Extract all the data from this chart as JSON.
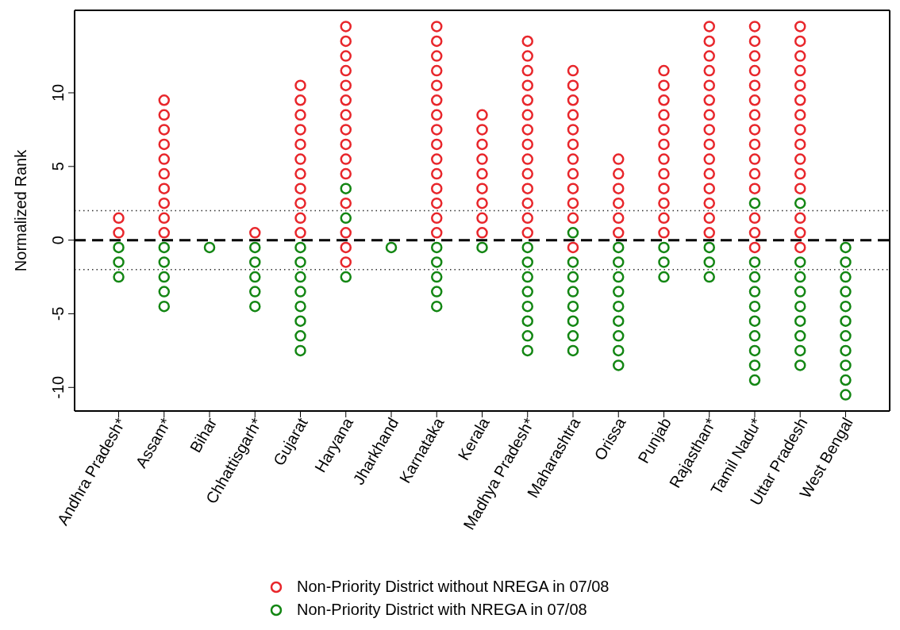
{
  "chart_data": {
    "type": "scatter",
    "ylabel": "Normalized Rank",
    "categories": [
      "Andhra Pradesh*",
      "Assam*",
      "Bihar",
      "Chhattisgarh*",
      "Gujarat",
      "Haryana",
      "Jharkhand",
      "Karnataka",
      "Kerala",
      "Madhya Pradesh*",
      "Maharashtra",
      "Orissa",
      "Punjab",
      "Rajasthan*",
      "Tamil Nadu*",
      "Uttar Pradesh",
      "West Bengal"
    ],
    "ylim": [
      -11.6,
      15.6
    ],
    "yticks": [
      -10,
      -5,
      0,
      5,
      10
    ],
    "grid": false,
    "marker": "circle",
    "legend": "bottom",
    "ref_lines": [
      {
        "axis": "y",
        "value": 0,
        "color": "#000000",
        "line_style": "dashed"
      },
      {
        "axis": "y",
        "value": 2,
        "color": "#333333",
        "line_style": "dotted"
      },
      {
        "axis": "y",
        "value": -2,
        "color": "#333333",
        "line_style": "dotted"
      }
    ],
    "series": [
      {
        "name": "Non-Priority District without NREGA in 07/08",
        "color": "#e8262b",
        "x": [
          "Andhra Pradesh*",
          "Andhra Pradesh*",
          "Assam*",
          "Assam*",
          "Assam*",
          "Assam*",
          "Assam*",
          "Assam*",
          "Assam*",
          "Assam*",
          "Assam*",
          "Assam*",
          "Chhattisgarh*",
          "Gujarat",
          "Gujarat",
          "Gujarat",
          "Gujarat",
          "Gujarat",
          "Gujarat",
          "Gujarat",
          "Gujarat",
          "Gujarat",
          "Gujarat",
          "Gujarat",
          "Haryana",
          "Haryana",
          "Haryana",
          "Haryana",
          "Haryana",
          "Haryana",
          "Haryana",
          "Haryana",
          "Haryana",
          "Haryana",
          "Haryana",
          "Haryana",
          "Haryana",
          "Haryana",
          "Haryana",
          "Karnataka",
          "Karnataka",
          "Karnataka",
          "Karnataka",
          "Karnataka",
          "Karnataka",
          "Karnataka",
          "Karnataka",
          "Karnataka",
          "Karnataka",
          "Karnataka",
          "Karnataka",
          "Karnataka",
          "Karnataka",
          "Karnataka",
          "Kerala",
          "Kerala",
          "Kerala",
          "Kerala",
          "Kerala",
          "Kerala",
          "Kerala",
          "Kerala",
          "Kerala",
          "Madhya Pradesh*",
          "Madhya Pradesh*",
          "Madhya Pradesh*",
          "Madhya Pradesh*",
          "Madhya Pradesh*",
          "Madhya Pradesh*",
          "Madhya Pradesh*",
          "Madhya Pradesh*",
          "Madhya Pradesh*",
          "Madhya Pradesh*",
          "Madhya Pradesh*",
          "Madhya Pradesh*",
          "Madhya Pradesh*",
          "Madhya Pradesh*",
          "Maharashtra",
          "Maharashtra",
          "Maharashtra",
          "Maharashtra",
          "Maharashtra",
          "Maharashtra",
          "Maharashtra",
          "Maharashtra",
          "Maharashtra",
          "Maharashtra",
          "Maharashtra",
          "Maharashtra",
          "Orissa",
          "Orissa",
          "Orissa",
          "Orissa",
          "Orissa",
          "Orissa",
          "Punjab",
          "Punjab",
          "Punjab",
          "Punjab",
          "Punjab",
          "Punjab",
          "Punjab",
          "Punjab",
          "Punjab",
          "Punjab",
          "Punjab",
          "Punjab",
          "Rajasthan*",
          "Rajasthan*",
          "Rajasthan*",
          "Rajasthan*",
          "Rajasthan*",
          "Rajasthan*",
          "Rajasthan*",
          "Rajasthan*",
          "Rajasthan*",
          "Rajasthan*",
          "Rajasthan*",
          "Rajasthan*",
          "Rajasthan*",
          "Rajasthan*",
          "Rajasthan*",
          "Tamil Nadu*",
          "Tamil Nadu*",
          "Tamil Nadu*",
          "Tamil Nadu*",
          "Tamil Nadu*",
          "Tamil Nadu*",
          "Tamil Nadu*",
          "Tamil Nadu*",
          "Tamil Nadu*",
          "Tamil Nadu*",
          "Tamil Nadu*",
          "Tamil Nadu*",
          "Tamil Nadu*",
          "Tamil Nadu*",
          "Tamil Nadu*",
          "Uttar Pradesh",
          "Uttar Pradesh",
          "Uttar Pradesh",
          "Uttar Pradesh",
          "Uttar Pradesh",
          "Uttar Pradesh",
          "Uttar Pradesh",
          "Uttar Pradesh",
          "Uttar Pradesh",
          "Uttar Pradesh",
          "Uttar Pradesh",
          "Uttar Pradesh",
          "Uttar Pradesh",
          "Uttar Pradesh",
          "Uttar Pradesh"
        ],
        "values": [
          0.5,
          1.5,
          0.5,
          1.5,
          2.5,
          3.5,
          4.5,
          5.5,
          6.5,
          7.5,
          8.5,
          9.5,
          0.5,
          0.5,
          1.5,
          2.5,
          3.5,
          4.5,
          5.5,
          6.5,
          7.5,
          8.5,
          9.5,
          10.5,
          -1.5,
          -0.5,
          0.5,
          2.5,
          4.5,
          5.5,
          6.5,
          7.5,
          8.5,
          9.5,
          10.5,
          11.5,
          12.5,
          13.5,
          14.5,
          0.5,
          1.5,
          2.5,
          3.5,
          4.5,
          5.5,
          6.5,
          7.5,
          8.5,
          9.5,
          10.5,
          11.5,
          12.5,
          13.5,
          14.5,
          0.5,
          1.5,
          2.5,
          3.5,
          4.5,
          5.5,
          6.5,
          7.5,
          8.5,
          0.5,
          1.5,
          2.5,
          3.5,
          4.5,
          5.5,
          6.5,
          7.5,
          8.5,
          9.5,
          10.5,
          11.5,
          12.5,
          13.5,
          -0.5,
          1.5,
          2.5,
          3.5,
          4.5,
          5.5,
          6.5,
          7.5,
          8.5,
          9.5,
          10.5,
          11.5,
          0.5,
          1.5,
          2.5,
          3.5,
          4.5,
          5.5,
          0.5,
          1.5,
          2.5,
          3.5,
          4.5,
          5.5,
          6.5,
          7.5,
          8.5,
          9.5,
          10.5,
          11.5,
          0.5,
          1.5,
          2.5,
          3.5,
          4.5,
          5.5,
          6.5,
          7.5,
          8.5,
          9.5,
          10.5,
          11.5,
          12.5,
          13.5,
          14.5,
          -0.5,
          0.5,
          1.5,
          3.5,
          4.5,
          5.5,
          6.5,
          7.5,
          8.5,
          9.5,
          10.5,
          11.5,
          12.5,
          13.5,
          14.5,
          -0.5,
          0.5,
          1.5,
          3.5,
          4.5,
          5.5,
          6.5,
          7.5,
          8.5,
          9.5,
          10.5,
          11.5,
          12.5,
          13.5,
          14.5
        ]
      },
      {
        "name": "Non-Priority District with NREGA in 07/08",
        "color": "#138613",
        "x": [
          "Andhra Pradesh*",
          "Andhra Pradesh*",
          "Andhra Pradesh*",
          "Assam*",
          "Assam*",
          "Assam*",
          "Assam*",
          "Assam*",
          "Bihar",
          "Chhattisgarh*",
          "Chhattisgarh*",
          "Chhattisgarh*",
          "Chhattisgarh*",
          "Chhattisgarh*",
          "Gujarat",
          "Gujarat",
          "Gujarat",
          "Gujarat",
          "Gujarat",
          "Gujarat",
          "Gujarat",
          "Gujarat",
          "Haryana",
          "Haryana",
          "Haryana",
          "Jharkhand",
          "Karnataka",
          "Karnataka",
          "Karnataka",
          "Karnataka",
          "Karnataka",
          "Kerala",
          "Madhya Pradesh*",
          "Madhya Pradesh*",
          "Madhya Pradesh*",
          "Madhya Pradesh*",
          "Madhya Pradesh*",
          "Madhya Pradesh*",
          "Madhya Pradesh*",
          "Madhya Pradesh*",
          "Maharashtra",
          "Maharashtra",
          "Maharashtra",
          "Maharashtra",
          "Maharashtra",
          "Maharashtra",
          "Maharashtra",
          "Maharashtra",
          "Orissa",
          "Orissa",
          "Orissa",
          "Orissa",
          "Orissa",
          "Orissa",
          "Orissa",
          "Orissa",
          "Orissa",
          "Punjab",
          "Punjab",
          "Punjab",
          "Rajasthan*",
          "Rajasthan*",
          "Rajasthan*",
          "Tamil Nadu*",
          "Tamil Nadu*",
          "Tamil Nadu*",
          "Tamil Nadu*",
          "Tamil Nadu*",
          "Tamil Nadu*",
          "Tamil Nadu*",
          "Tamil Nadu*",
          "Tamil Nadu*",
          "Tamil Nadu*",
          "Uttar Pradesh",
          "Uttar Pradesh",
          "Uttar Pradesh",
          "Uttar Pradesh",
          "Uttar Pradesh",
          "Uttar Pradesh",
          "Uttar Pradesh",
          "Uttar Pradesh",
          "Uttar Pradesh",
          "West Bengal",
          "West Bengal",
          "West Bengal",
          "West Bengal",
          "West Bengal",
          "West Bengal",
          "West Bengal",
          "West Bengal",
          "West Bengal",
          "West Bengal",
          "West Bengal"
        ],
        "values": [
          -0.5,
          -1.5,
          -2.5,
          -0.5,
          -1.5,
          -2.5,
          -3.5,
          -4.5,
          -0.5,
          -0.5,
          -1.5,
          -2.5,
          -3.5,
          -4.5,
          -0.5,
          -1.5,
          -2.5,
          -3.5,
          -4.5,
          -5.5,
          -6.5,
          -7.5,
          3.5,
          1.5,
          -2.5,
          -0.5,
          -0.5,
          -1.5,
          -2.5,
          -3.5,
          -4.5,
          -0.5,
          -0.5,
          -1.5,
          -2.5,
          -3.5,
          -4.5,
          -5.5,
          -6.5,
          -7.5,
          0.5,
          -1.5,
          -2.5,
          -3.5,
          -4.5,
          -5.5,
          -6.5,
          -7.5,
          -0.5,
          -1.5,
          -2.5,
          -3.5,
          -4.5,
          -5.5,
          -6.5,
          -7.5,
          -8.5,
          -0.5,
          -1.5,
          -2.5,
          -0.5,
          -1.5,
          -2.5,
          2.5,
          -1.5,
          -2.5,
          -3.5,
          -4.5,
          -5.5,
          -6.5,
          -7.5,
          -8.5,
          -9.5,
          2.5,
          -1.5,
          -2.5,
          -3.5,
          -4.5,
          -5.5,
          -6.5,
          -7.5,
          -8.5,
          -0.5,
          -1.5,
          -2.5,
          -3.5,
          -4.5,
          -5.5,
          -6.5,
          -7.5,
          -8.5,
          -9.5,
          -10.5
        ]
      }
    ]
  }
}
